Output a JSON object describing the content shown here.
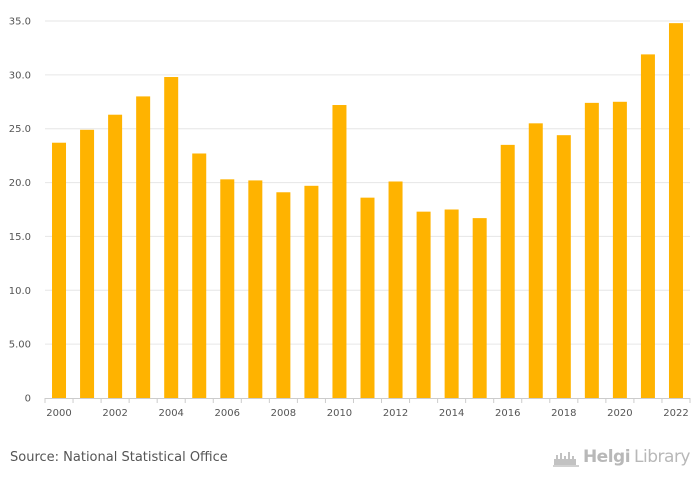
{
  "chart_data": {
    "type": "bar",
    "categories": [
      "2000",
      "2001",
      "2002",
      "2003",
      "2004",
      "2005",
      "2006",
      "2007",
      "2008",
      "2009",
      "2010",
      "2011",
      "2012",
      "2013",
      "2014",
      "2015",
      "2016",
      "2017",
      "2018",
      "2019",
      "2020",
      "2021",
      "2022"
    ],
    "values": [
      23.7,
      24.9,
      26.3,
      28.0,
      29.8,
      22.7,
      20.3,
      20.2,
      19.1,
      19.7,
      27.2,
      18.6,
      20.1,
      17.3,
      17.5,
      16.7,
      23.5,
      25.5,
      24.4,
      27.4,
      27.5,
      31.9,
      34.8
    ],
    "x_tick_labels": [
      "2000",
      "2002",
      "2004",
      "2006",
      "2008",
      "2010",
      "2012",
      "2014",
      "2016",
      "2018",
      "2020",
      "2022"
    ],
    "y_ticks": [
      0,
      5,
      10,
      15,
      20,
      25,
      30,
      35
    ],
    "y_tick_labels": [
      "0",
      "5.00",
      "10.0",
      "15.0",
      "20.0",
      "25.0",
      "30.0",
      "35.0"
    ],
    "ylim": [
      0,
      35
    ],
    "title": "",
    "xlabel": "",
    "ylabel": "",
    "grid": true,
    "bar_color": "#FFB300",
    "grid_color": "#e6e6e6",
    "background": "#ffffff"
  },
  "footer": {
    "source": "Source: National Statistical Office",
    "brand_prefix": "Helgi",
    "brand_suffix": "Library"
  }
}
